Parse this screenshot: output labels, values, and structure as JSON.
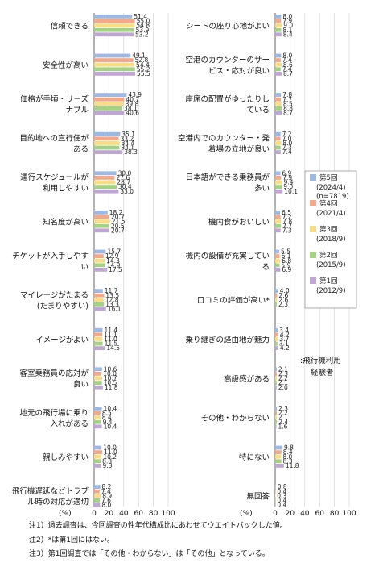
{
  "chart_data": [
    {
      "type": "bar",
      "orientation": "horizontal",
      "categories": [
        "信頼できる",
        "安全性が高い",
        "価格が手頃・リーズナブル",
        "目的地への直行便がある",
        "運行スケジュールが利用しやすい",
        "知名度が高い",
        "チケットが入手しやすい",
        "マイレージがたまる(たまりやすい)",
        "イメージがよい",
        "客室乗務員の応対が良い",
        "地元の飛行場に乗り入れがある",
        "親しみやすい",
        "飛行機遅延などトラブル時の対応が適切"
      ],
      "category_lines": [
        [
          "信頼できる"
        ],
        [
          "安全性が高い"
        ],
        [
          "価格が手頃・リーズ",
          "ナブル"
        ],
        [
          "目的地への直行便が",
          "ある"
        ],
        [
          "運行スケジュールが",
          "利用しやすい"
        ],
        [
          "知名度が高い"
        ],
        [
          "チケットが入手しやす",
          "い"
        ],
        [
          "マイレージがたまる",
          "(たまりやすい)"
        ],
        [
          "イメージがよい"
        ],
        [
          "客室乗務員の応対が",
          "良い"
        ],
        [
          "地元の飛行場に乗り",
          "入れがある"
        ],
        [
          "親しみやすい"
        ],
        [
          "飛行機遅延などトラブ",
          "ル時の対応が適切"
        ]
      ],
      "series": [
        {
          "name": "第5回",
          "values": [
            51.4,
            49.1,
            43.9,
            35.1,
            30.0,
            18.2,
            15.7,
            11.7,
            11.4,
            10.6,
            10.4,
            10.0,
            8.2
          ]
        },
        {
          "name": "第4回",
          "values": [
            55.0,
            52.8,
            40.7,
            33.2,
            27.6,
            20.7,
            12.9,
            13.5,
            11.1,
            10.0,
            8.5,
            11.0,
            7.4
          ]
        },
        {
          "name": "第3回",
          "values": [
            54.8,
            54.4,
            39.8,
            34.4,
            28.7,
            21.5,
            14.3,
            12.8,
            11.0,
            10.7,
            8.4,
            10.2,
            8.9
          ]
        },
        {
          "name": "第2回",
          "values": [
            53.9,
            55.2,
            38.1,
            34.1,
            30.4,
            20.5,
            14.9,
            13.3,
            11.5,
            10.5,
            9.4,
            8.8,
            7.6
          ]
        },
        {
          "name": "第1回",
          "values": [
            53.2,
            55.5,
            40.6,
            38.3,
            33.0,
            20.7,
            17.5,
            16.1,
            14.5,
            11.8,
            10.4,
            9.3,
            8.0
          ]
        }
      ],
      "xlim": [
        0,
        100
      ],
      "xticks": [
        "0",
        "20",
        "40",
        "60",
        "80",
        "100"
      ],
      "unit_label": "(%)"
    },
    {
      "type": "bar",
      "orientation": "horizontal",
      "categories": [
        "シートの座り心地がよい",
        "空港のカウンターのサービス・応対が良い",
        "座席の配置がゆったりしている",
        "空港内でのカウンター・発着場の立地が良い",
        "日本語ができる乗務員が多い",
        "機内食がおいしい",
        "機内の設備が充実している",
        "口コミの評価が高い*",
        "乗り継ぎの経由地が魅力",
        "高級感がある",
        "その他・わからない",
        "特にない",
        "無回答"
      ],
      "category_lines": [
        [
          "シートの座り心地がよい"
        ],
        [
          "空港のカウンターのサー",
          "ビス・応対が良い"
        ],
        [
          "座席の配置がゆったりし",
          "ている"
        ],
        [
          "空港内でのカウンター・発",
          "着場の立地が良い"
        ],
        [
          "日本語ができる乗務員が",
          "多い"
        ],
        [
          "機内食がおいしい"
        ],
        [
          "機内の設備が充実してい",
          "る"
        ],
        [
          "口コミの評価が高い*"
        ],
        [
          "乗り継ぎの経由地が魅力"
        ],
        [
          "高級感がある"
        ],
        [
          "その他・わからない"
        ],
        [
          "特にない"
        ],
        [
          "無回答"
        ]
      ],
      "series": [
        {
          "name": "第5回",
          "values": [
            8.0,
            8.0,
            7.8,
            7.2,
            6.9,
            6.5,
            5.5,
            4.0,
            3.4,
            2.1,
            2.3,
            9.8,
            0.8
          ]
        },
        {
          "name": "第4回",
          "values": [
            7.9,
            7.4,
            7.7,
            7.0,
            7.9,
            7.2,
            6.1,
            2.6,
            4.2,
            2.3,
            2.2,
            8.4,
            0.4
          ]
        },
        {
          "name": "第3回",
          "values": [
            9.0,
            8.6,
            8.5,
            8.0,
            9.4,
            7.8,
            6.8,
            2.6,
            3.7,
            2.2,
            2.1,
            8.0,
            0.3
          ]
        },
        {
          "name": "第2回",
          "values": [
            8.1,
            7.4,
            8.8,
            7.3,
            9.0,
            7.7,
            5.9,
            2.3,
            3.1,
            2.1,
            2.4,
            8.3,
            0.4
          ]
        },
        {
          "name": "第1回",
          "values": [
            8.4,
            8.7,
            8.7,
            7.4,
            10.1,
            7.3,
            6.9,
            null,
            4.2,
            2.0,
            1.6,
            11.8,
            0.4
          ]
        }
      ],
      "xlim": [
        0,
        100
      ],
      "xticks": [
        "0",
        "20",
        "40",
        "60",
        "80",
        "100"
      ],
      "unit_label": "(%)"
    }
  ],
  "legend": {
    "items": [
      {
        "name": "第5回",
        "sub": "(2024/4)",
        "sub2": "(n=7819)"
      },
      {
        "name": "第4回",
        "sub": "(2021/4)"
      },
      {
        "name": "第3回",
        "sub": "(2018/9)"
      },
      {
        "name": "第2回",
        "sub": "(2015/9)"
      },
      {
        "name": "第1回",
        "sub": "(2012/9)"
      }
    ]
  },
  "base_label": [
    ":飛行機利用",
    "経験者"
  ],
  "colors": [
    "#9db9e3",
    "#f4a88a",
    "#f8dc86",
    "#a3d283",
    "#c0a6d4"
  ],
  "notes": [
    "注1）過去調査は、今回調査の性年代構成比にあわせてウエイトバックした値。",
    "注2）*は第1回にはない。",
    "注3）第1回調査では「その他・わからない」は「その他」となっている。"
  ]
}
